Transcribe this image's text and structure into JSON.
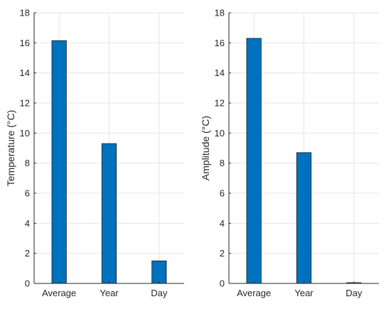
{
  "chart_data": [
    {
      "type": "bar",
      "categories": [
        "Average",
        "Year",
        "Day"
      ],
      "values": [
        16.15,
        9.3,
        1.5
      ],
      "xlabel": "",
      "ylabel": "Temperature (°C)",
      "ylim": [
        0,
        18
      ],
      "yticks": [
        0,
        2,
        4,
        6,
        8,
        10,
        12,
        14,
        16,
        18
      ],
      "grid": true,
      "bar_color": "#0072BD"
    },
    {
      "type": "bar",
      "categories": [
        "Average",
        "Year",
        "Day"
      ],
      "values": [
        16.3,
        8.7,
        0.05
      ],
      "xlabel": "",
      "ylabel": "Amplitude (°C)",
      "ylim": [
        0,
        18
      ],
      "yticks": [
        0,
        2,
        4,
        6,
        8,
        10,
        12,
        14,
        16,
        18
      ],
      "grid": true,
      "bar_color": "#0072BD"
    }
  ]
}
